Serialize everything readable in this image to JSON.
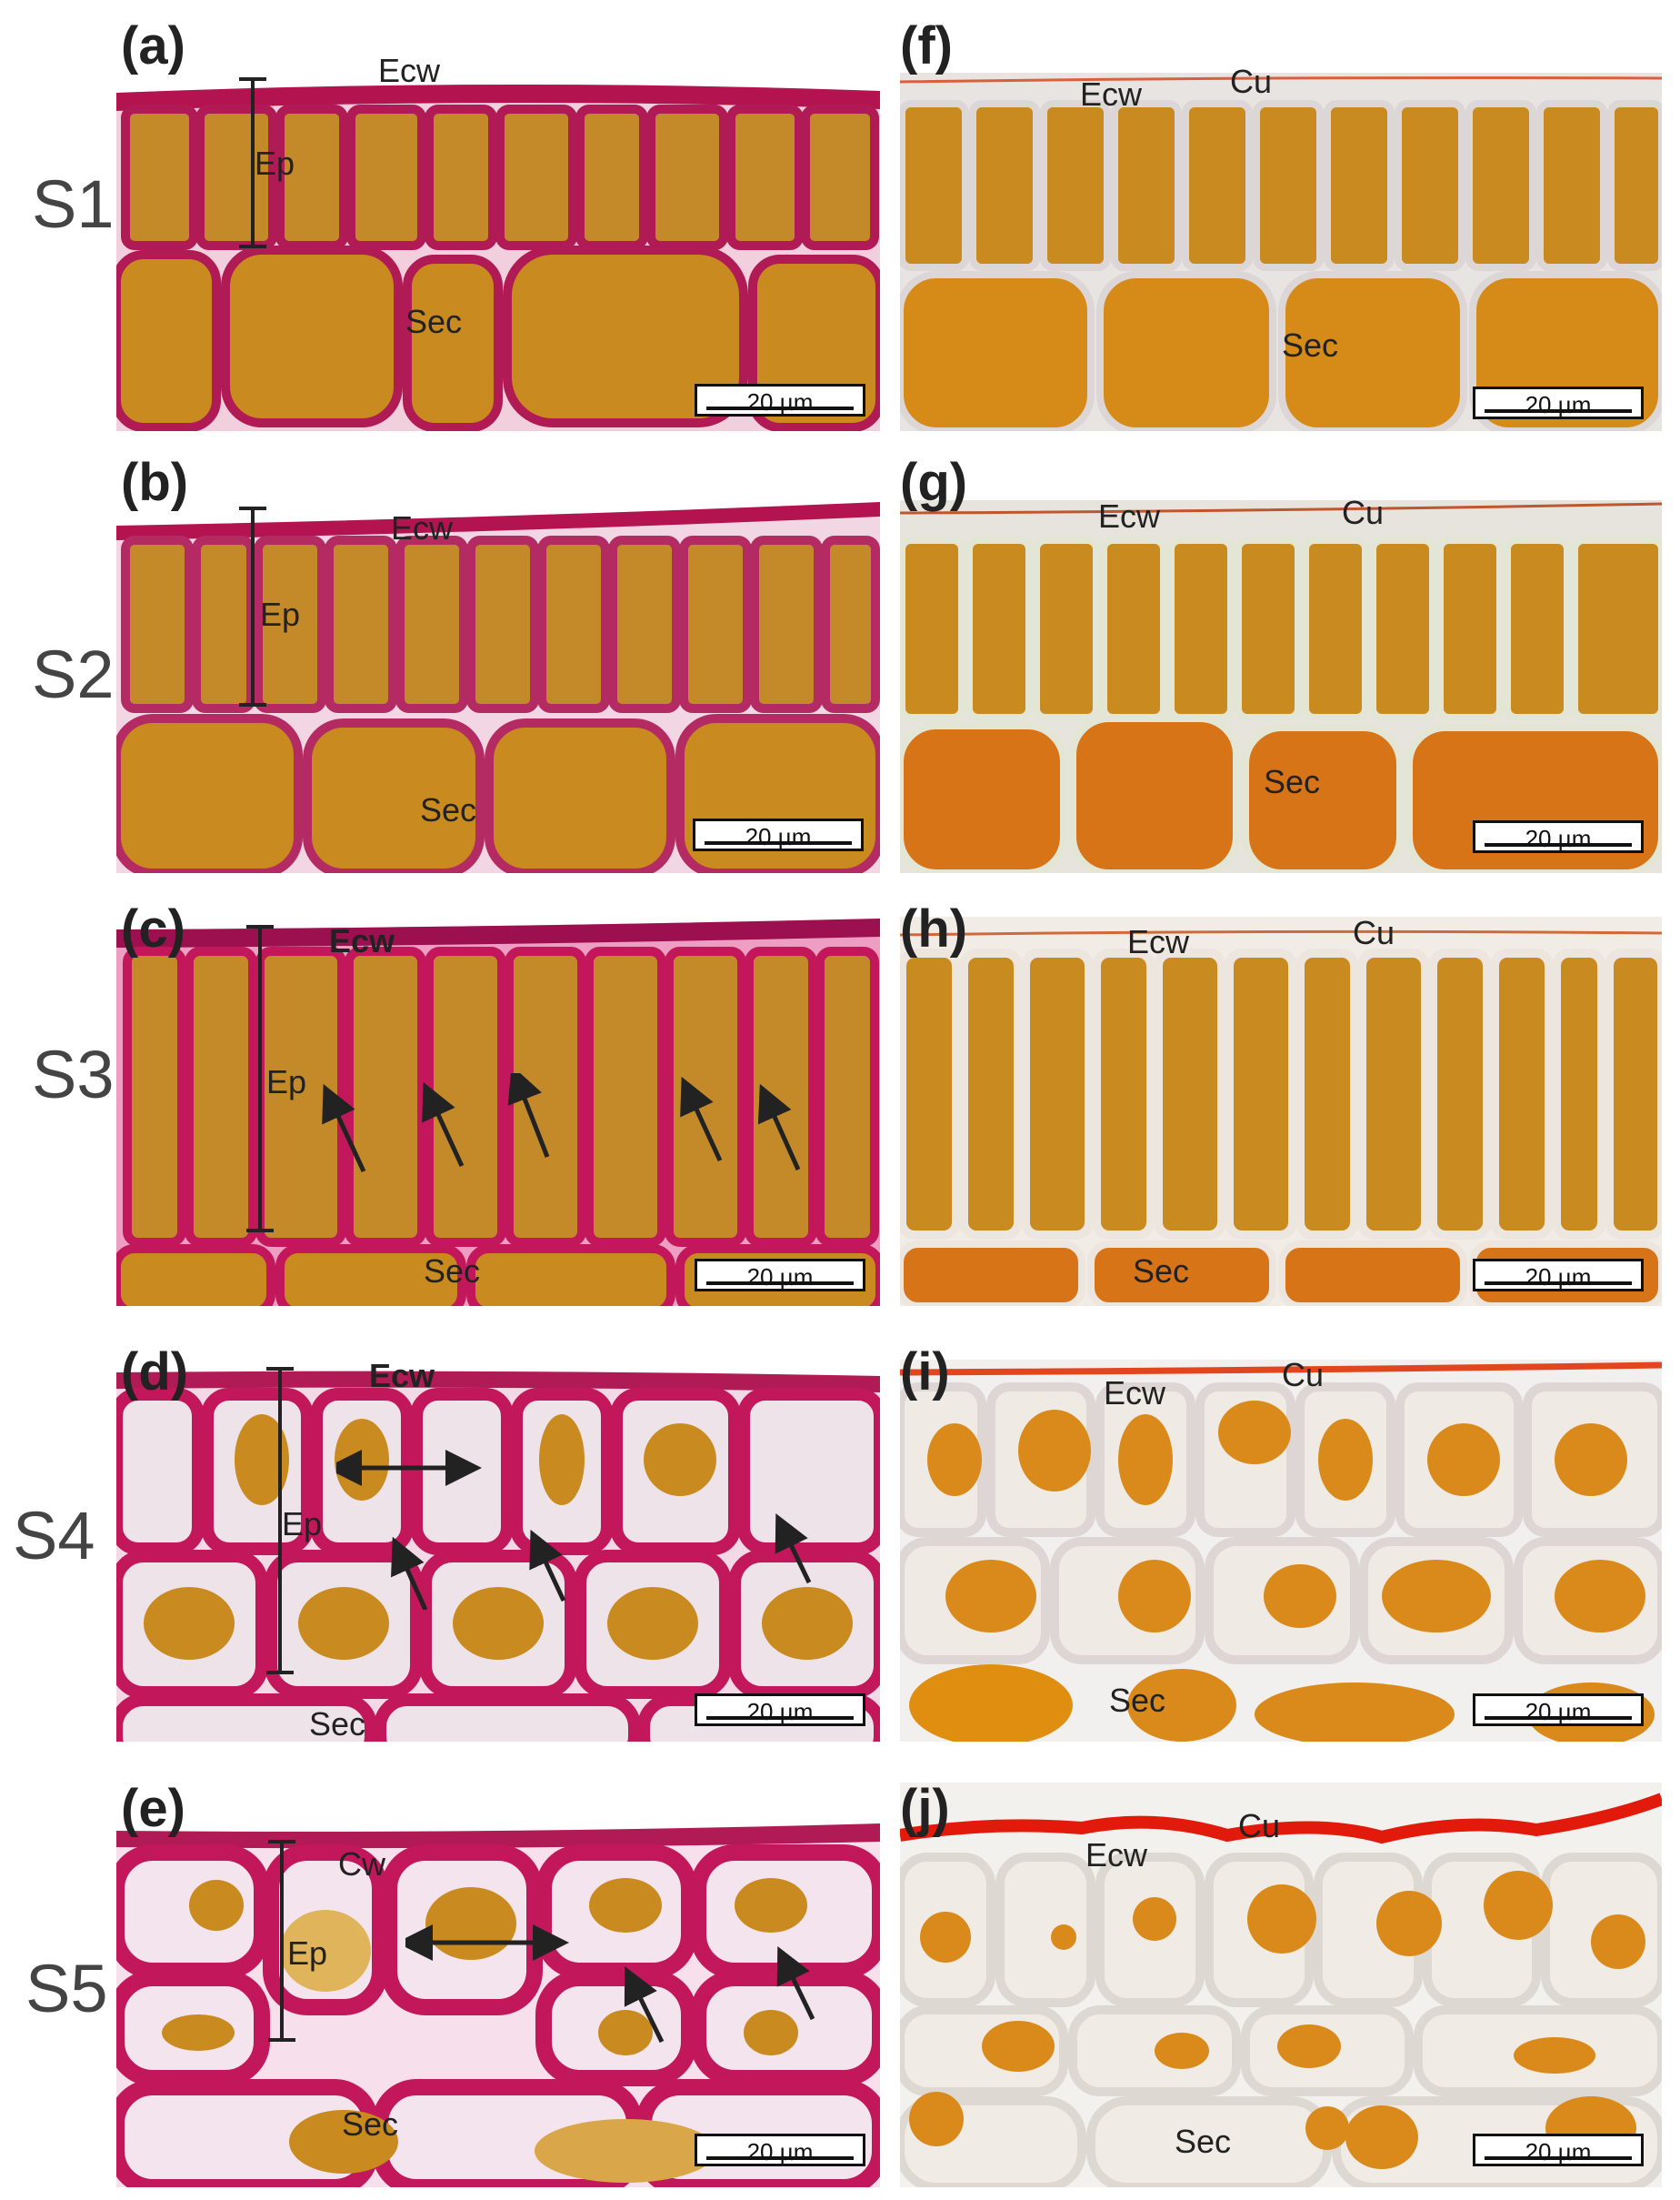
{
  "stages": [
    "S1",
    "S2",
    "S3",
    "S4",
    "S5"
  ],
  "panel_labels": [
    "(a)",
    "(b)",
    "(c)",
    "(d)",
    "(e)",
    "(f)",
    "(g)",
    "(h)",
    "(i)",
    "(j)"
  ],
  "scale_bar": "20 µm",
  "annotations": {
    "a": [
      "Ecw",
      "Ep",
      "Sec"
    ],
    "b": [
      "Ecw",
      "Ep",
      "Sec"
    ],
    "c": [
      "Ecw",
      "Ep",
      "Sec"
    ],
    "d": [
      "Ecw",
      "Ep",
      "Sec"
    ],
    "e": [
      "Cw",
      "Ep",
      "Sec"
    ],
    "f": [
      "Ecw",
      "Cu",
      "Sec"
    ],
    "g": [
      "Ecw",
      "Cu",
      "Sec"
    ],
    "h": [
      "Ecw",
      "Cu",
      "Sec"
    ],
    "i": [
      "Ecw",
      "Cu",
      "Sec"
    ],
    "j": [
      "Cu",
      "Ecw",
      "Sec"
    ]
  },
  "colors": {
    "left_wall_stain": "#c2185b",
    "left_background": "#f3d6e3",
    "right_background": "#f0ece6",
    "cytoplasm": "#c98a1f",
    "cuticle": "#e0301e",
    "text": "#222222"
  }
}
